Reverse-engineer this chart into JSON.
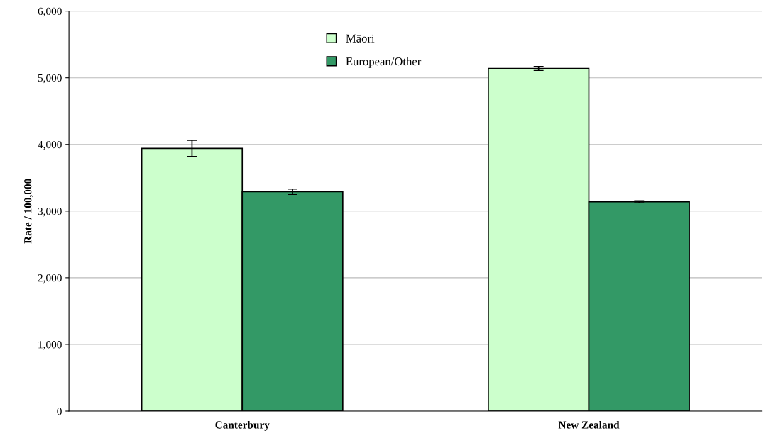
{
  "chart_data": {
    "type": "bar",
    "ylabel": "Rate / 100,000",
    "categories": [
      "Canterbury",
      "New Zealand"
    ],
    "series": [
      {
        "name": "Māori",
        "color": "#ccffcc",
        "values": [
          3940,
          5140
        ],
        "errors": [
          120,
          30
        ]
      },
      {
        "name": "European/Other",
        "color": "#339966",
        "values": [
          3290,
          3140
        ],
        "errors": [
          40,
          15
        ]
      }
    ],
    "ylim": [
      0,
      6000
    ],
    "yticks": [
      {
        "value": 0,
        "label": "0"
      },
      {
        "value": 1000,
        "label": "1,000"
      },
      {
        "value": 2000,
        "label": "2,000"
      },
      {
        "value": 3000,
        "label": "3,000"
      },
      {
        "value": 4000,
        "label": "4,000"
      },
      {
        "value": 5000,
        "label": "5,000"
      },
      {
        "value": 6000,
        "label": "6,000"
      }
    ],
    "grid": "y",
    "legend": "top"
  }
}
